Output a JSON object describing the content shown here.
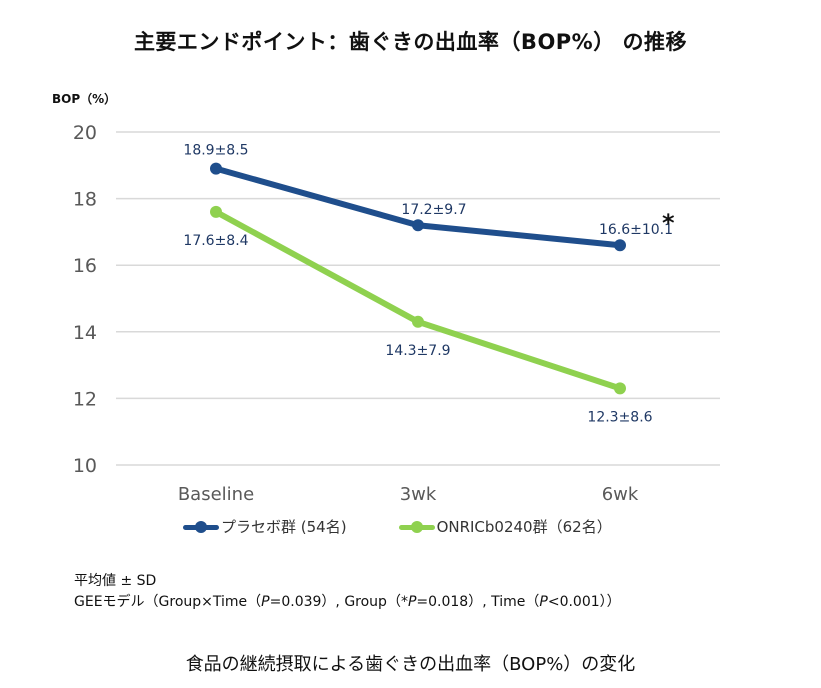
{
  "title": "主要エンドポイント：歯ぐきの出血率（BOP%） の推移",
  "caption": "食品の継続摂取による歯ぐきの出血率（BOP%）の変化",
  "notes": {
    "line1": "平均値 ± SD",
    "line2_parts": [
      "GEEモデル（Group×Time（",
      "P",
      "=0.039）, Group（*",
      "P",
      "=0.018）, Time（",
      "P",
      "<0.001））"
    ]
  },
  "colors": {
    "placebo": "#1f4e8c",
    "active": "#8fd14f",
    "label_text": "#1f3864",
    "grid": "#d9d9d9",
    "tick_text": "#595959"
  },
  "chart_data": {
    "type": "line",
    "title": "主要エンドポイント：歯ぐきの出血率（BOP%） の推移",
    "ylabel": "BOP（%）",
    "xlabel": "",
    "categories": [
      "Baseline",
      "3wk",
      "6wk"
    ],
    "ylim": [
      10,
      20
    ],
    "yticks": [
      10,
      12,
      14,
      16,
      18,
      20
    ],
    "grid": true,
    "legend_position": "bottom",
    "series": [
      {
        "name": "プラセボ群 (54名)",
        "key": "placebo",
        "values": [
          18.9,
          17.2,
          16.6
        ],
        "sd": [
          8.5,
          9.7,
          10.1
        ],
        "labels": [
          "18.9±8.5",
          "17.2±9.7",
          "16.6±10.1"
        ],
        "label_position": "above"
      },
      {
        "name": "ONRICb0240群（62名）",
        "key": "active",
        "values": [
          17.6,
          14.3,
          12.3
        ],
        "sd": [
          8.4,
          7.9,
          8.6
        ],
        "labels": [
          "17.6±8.4",
          "14.3±7.9",
          "12.3±8.6"
        ],
        "label_position": "below"
      }
    ],
    "annotations": [
      {
        "text": "*",
        "attached_to": "placebo",
        "category": "6wk"
      }
    ]
  }
}
